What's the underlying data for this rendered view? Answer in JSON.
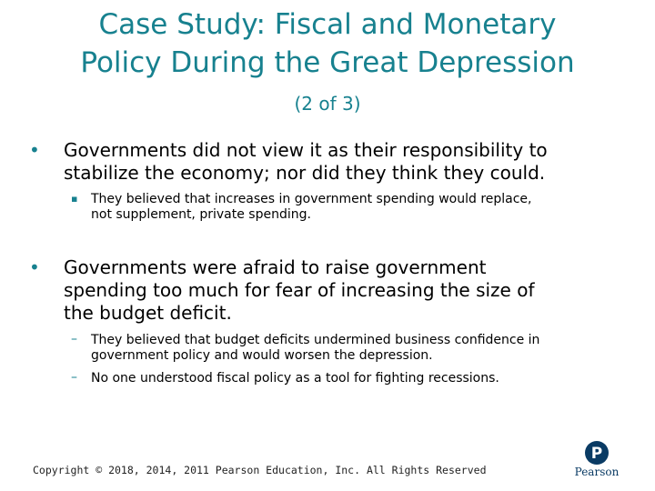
{
  "slide": {
    "title_line1": "Case Study:  Fiscal and Monetary",
    "title_line2": "Policy During the Great Depression",
    "subtitle": "(2 of 3)",
    "bullets": [
      {
        "text_line1": "Governments did not view it as their responsibility to",
        "text_line2": "stabilize the economy;  nor did they think they could.",
        "sub": [
          {
            "line1": "They believed that increases in government spending would replace,",
            "line2": "not supplement, private spending."
          }
        ]
      },
      {
        "text_line1": "Governments were afraid to raise government",
        "text_line2": "spending too much for fear of increasing the size of",
        "text_line3": "the budget deficit.",
        "sub": [
          {
            "line1": "They believed that budget deficits undermined business confidence in",
            "line2": "government policy and would worsen the depression."
          },
          {
            "line1": "No one understood fiscal policy as a tool for fighting recessions."
          }
        ]
      }
    ],
    "footer": "Copyright © 2018, 2014, 2011 Pearson Education, Inc. All Rights Reserved",
    "logo_text": "Pearson",
    "bullet_marker": "•",
    "square_marker": "▪",
    "dash_marker": "–"
  },
  "colors": {
    "accent": "#17818f",
    "logo": "#0a3b64"
  }
}
